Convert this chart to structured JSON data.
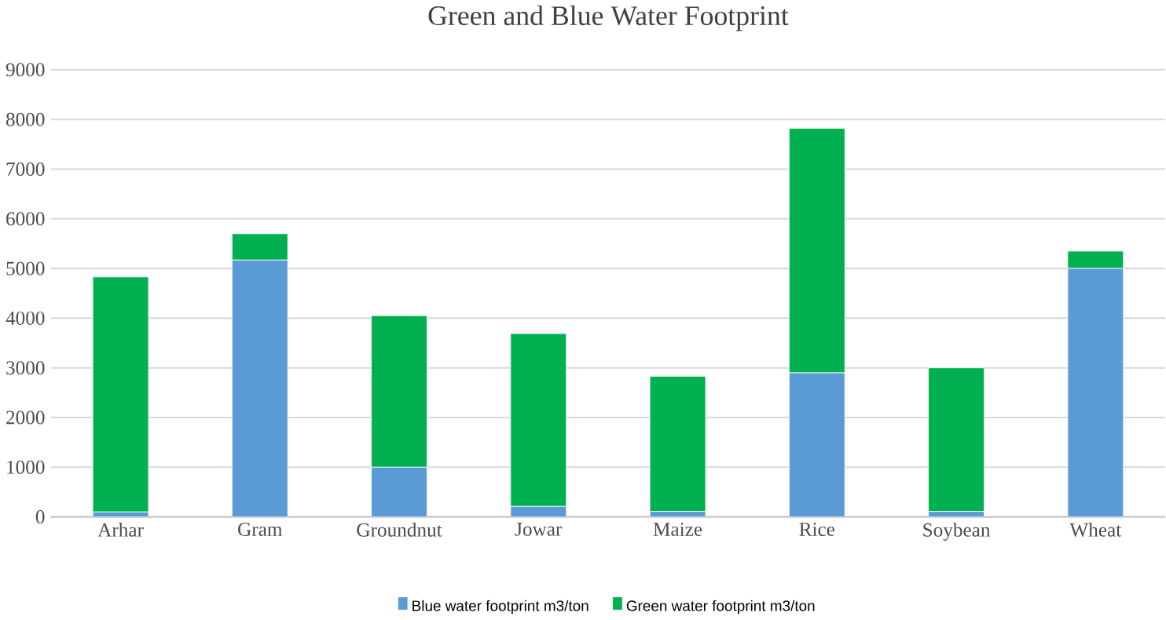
{
  "chart_data": {
    "type": "bar",
    "title": "Green and Blue Water Footprint",
    "stacked": true,
    "categories": [
      "Arhar",
      "Gram",
      "Groundnut",
      "Jowar",
      "Maize",
      "Rice",
      "Soybean",
      "Wheat"
    ],
    "series": [
      {
        "name": "Blue water footprint m3/ton",
        "color": "#5b9bd5",
        "values": [
          100,
          5170,
          1000,
          210,
          110,
          2900,
          110,
          5000
        ]
      },
      {
        "name": "Green water footprint m3/ton",
        "color": "#00b050",
        "values": [
          4730,
          530,
          3050,
          3480,
          2720,
          4920,
          2890,
          350
        ]
      }
    ],
    "ylim": [
      0,
      9000
    ],
    "yticks": [
      0,
      1000,
      2000,
      3000,
      4000,
      5000,
      6000,
      7000,
      8000,
      9000
    ],
    "grid": "y",
    "legend": "bottom"
  }
}
